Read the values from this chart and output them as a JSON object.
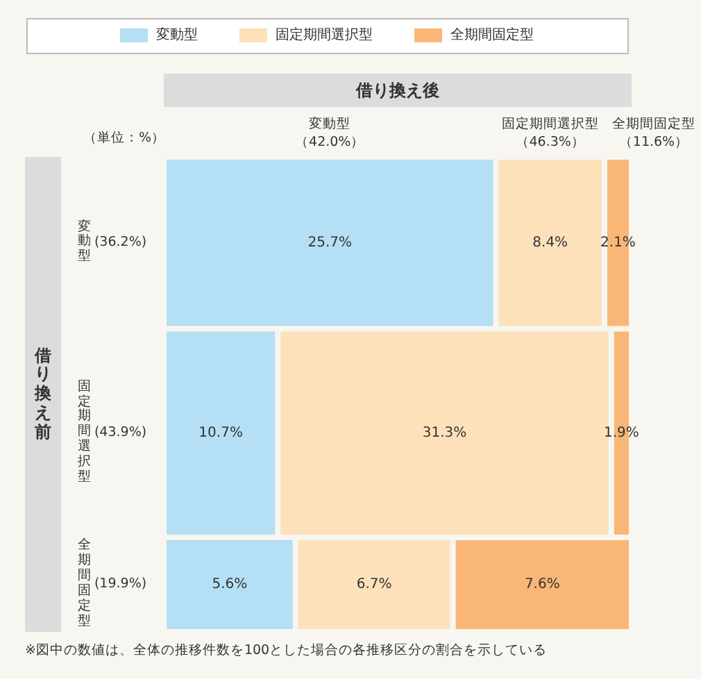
{
  "chart_data": {
    "type": "other",
    "xlabel": "借り換え後",
    "ylabel": "借り換え前",
    "categories": [
      "変動型",
      "固定期間選択型",
      "全期間固定型"
    ],
    "series": [
      {
        "name": "変動型",
        "color": "#b5dff4",
        "values": [
          25.7,
          10.7,
          5.6
        ],
        "value_labels": [
          "25.7%",
          "10.7%",
          "5.6%"
        ]
      },
      {
        "name": "固定期間選択型",
        "color": "#fde1ba",
        "values": [
          8.4,
          31.3,
          6.7
        ],
        "value_labels": [
          "8.4%",
          "31.3%",
          "6.7%"
        ]
      },
      {
        "name": "全期間固定型",
        "color": "#f9b676",
        "values": [
          2.1,
          1.9,
          7.6
        ],
        "value_labels": [
          "2.1%",
          "1.9%",
          "7.6%"
        ]
      }
    ],
    "annotations": [
      "（単位：%）",
      "（42.0%）",
      "（46.3%）",
      "（11.6%）",
      {
        "text": "(36.2%)",
        "y": "変動型"
      },
      {
        "text": "(43.9%)",
        "y": "固定期間選択型"
      },
      {
        "text": "(19.9%)",
        "y": "全期間固定型"
      },
      "※図中の数値は、全体の推移件数を100とした場合の各推移区分の割合を示している"
    ],
    "legend": "top"
  }
}
